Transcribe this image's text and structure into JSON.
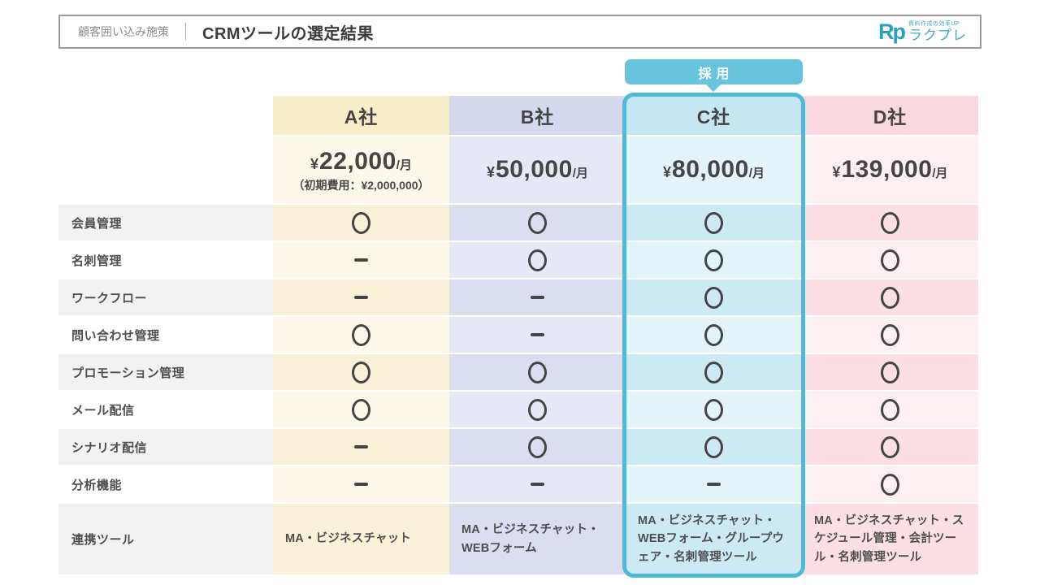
{
  "header": {
    "category_label": "顧客囲い込み施策",
    "title": "CRMツールの選定結果",
    "logo": {
      "mark": "Rp",
      "tagline": "資料作成の効率UP",
      "name": "ラクプレ",
      "mark_color": "#2e9fbe",
      "text_color": "#45a8c4"
    }
  },
  "badge": {
    "label": "採用",
    "color": "#68c4dd"
  },
  "table": {
    "accent_outline_color": "#4dbbd7",
    "label_row_dark": "#f2f2f2",
    "label_row_light": "#ffffff",
    "feature_symbols": {
      "yes": "○",
      "no": "−"
    },
    "row_labels": [
      "会員管理",
      "名刺管理",
      "ワークフロー",
      "問い合わせ管理",
      "プロモーション管理",
      "メール配信",
      "シナリオ配信",
      "分析機能",
      "連携ツール"
    ],
    "columns": [
      {
        "key": "a",
        "name": "A社",
        "currency": "¥",
        "price": "22,000",
        "price_suffix": "/月",
        "price_note": "（初期費用：¥2,000,000）",
        "selected": false,
        "features": [
          "yes",
          "no",
          "no",
          "yes",
          "yes",
          "yes",
          "no",
          "no"
        ],
        "integrations": "MA・ビジネスチャット",
        "colors": {
          "header": "#f6edc9",
          "dark": "#f9f2d8",
          "light": "#fcf8ea"
        }
      },
      {
        "key": "b",
        "name": "B社",
        "currency": "¥",
        "price": "50,000",
        "price_suffix": "/月",
        "price_note": "",
        "selected": false,
        "features": [
          "yes",
          "yes",
          "no",
          "no",
          "yes",
          "yes",
          "yes",
          "no"
        ],
        "integrations": "MA・ビジネスチャット・WEBフォーム",
        "colors": {
          "header": "#d5d9ed",
          "dark": "#dadef0",
          "light": "#e6e9f5"
        }
      },
      {
        "key": "c",
        "name": "C社",
        "currency": "¥",
        "price": "80,000",
        "price_suffix": "/月",
        "price_note": "",
        "selected": true,
        "features": [
          "yes",
          "yes",
          "yes",
          "yes",
          "yes",
          "yes",
          "yes",
          "no"
        ],
        "integrations": "MA・ビジネスチャット・WEBフォーム・グループウェア・名刺管理ツール",
        "colors": {
          "header": "#c5e7f1",
          "dark": "#cceaf3",
          "light": "#e2f4f8"
        }
      },
      {
        "key": "d",
        "name": "D社",
        "currency": "¥",
        "price": "139,000",
        "price_suffix": "/月",
        "price_note": "",
        "selected": false,
        "features": [
          "yes",
          "yes",
          "yes",
          "yes",
          "yes",
          "yes",
          "yes",
          "yes"
        ],
        "integrations": "MA・ビジネスチャット・スケジュール管理・会計ツール・名刺管理ツール",
        "colors": {
          "header": "#f9d8df",
          "dark": "#fbdfe5",
          "light": "#fdf0f3"
        }
      }
    ]
  }
}
